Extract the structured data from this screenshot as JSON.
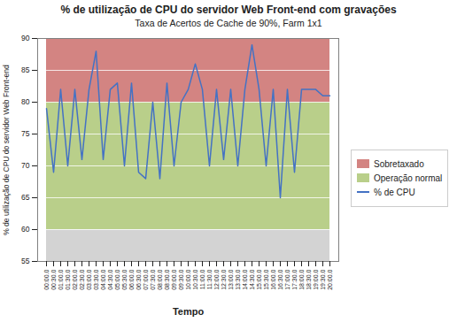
{
  "chart_data": {
    "type": "line",
    "title": "% de utilização de CPU do servidor Web Front-end com gravações",
    "subtitle": "Taxa de Acertos de Cache de 90%, Farm 1x1",
    "x_label": "Tempo",
    "y_label": "% de utilização de CPU do servidor Web Front-end",
    "categories": [
      "00:00.0",
      "00:30.0",
      "01:00.0",
      "01:30.0",
      "02:00.0",
      "02:30.0",
      "03:00.0",
      "03:30.0",
      "04:00.0",
      "04:30.0",
      "05:00.0",
      "05:30.0",
      "06:00.0",
      "06:30.0",
      "07:00.0",
      "07:30.0",
      "08:00.0",
      "08:30.0",
      "09:00.0",
      "09:30.0",
      "10:00.0",
      "10:30.0",
      "11:00.0",
      "11:30.0",
      "12:00.0",
      "12:30.0",
      "13:00.0",
      "13:30.0",
      "14:00.0",
      "14:30.0",
      "15:00.0",
      "15:30.0",
      "16:00.0",
      "16:30.0",
      "17:00.0",
      "17:30.0",
      "18:00.0",
      "18:30.0",
      "19:00.0",
      "19:30.0",
      "20:00.0"
    ],
    "series": [
      {
        "name": "% de CPU",
        "color": "#4472c4",
        "values": [
          79,
          69,
          82,
          70,
          82,
          71,
          82,
          88,
          71,
          82,
          83,
          70,
          83,
          69,
          68,
          80,
          68,
          83,
          70,
          80,
          82,
          86,
          82,
          70,
          82,
          71,
          82,
          70,
          82,
          89,
          82,
          70,
          82,
          65,
          82,
          69,
          82,
          82,
          82,
          81,
          81
        ]
      }
    ],
    "bands": [
      {
        "name": "Sobretaxado",
        "color": "#c0504d",
        "lower": 80,
        "upper": 90
      },
      {
        "name": "Operação normal",
        "color": "#9bbb59",
        "lower": 60,
        "upper": 80
      },
      {
        "color": "#c0c0c0",
        "lower": 55,
        "upper": 60
      }
    ],
    "ylim": [
      55,
      90
    ],
    "yticks": [
      55,
      60,
      65,
      70,
      75,
      80,
      85,
      90
    ],
    "grid": true,
    "legend": "right"
  }
}
